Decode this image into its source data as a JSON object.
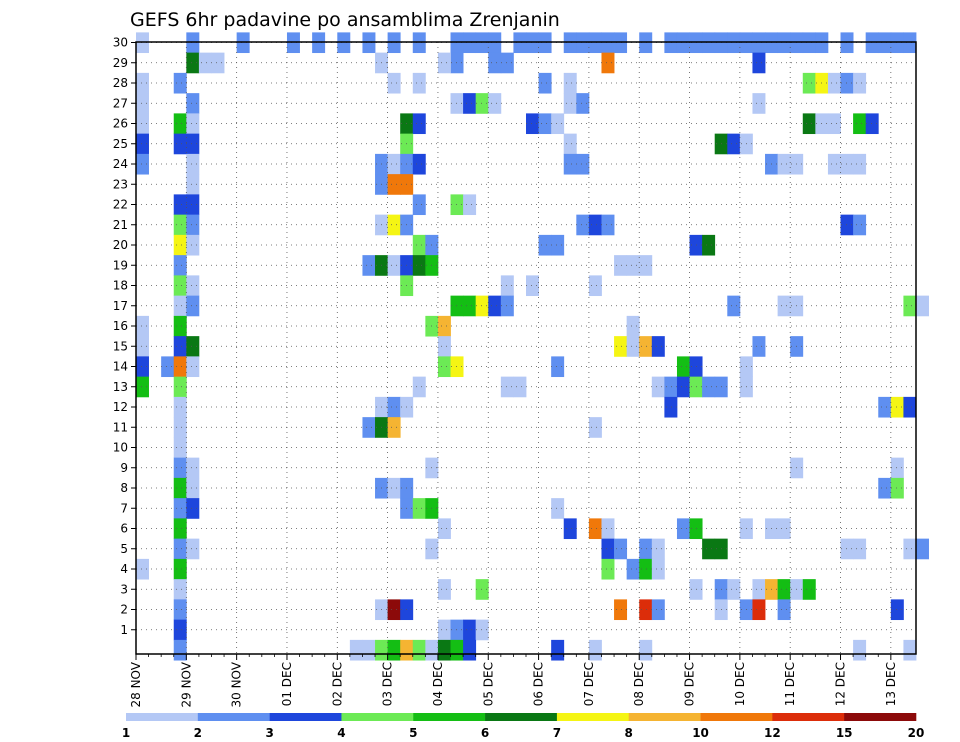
{
  "chart_data": {
    "type": "heatmap",
    "title": "GEFS 6hr padavine po ansamblima Zrenjanin",
    "xlabel": "",
    "ylabel": "",
    "x_tick_labels": [
      "28 NOV",
      "29 NOV",
      "30 NOV",
      "01 DEC",
      "02 DEC",
      "03 DEC",
      "04 DEC",
      "05 DEC",
      "06 DEC",
      "07 DEC",
      "08 DEC",
      "09 DEC",
      "10 DEC",
      "11 DEC",
      "12 DEC",
      "13 DEC"
    ],
    "y_tick_labels": [
      "1",
      "2",
      "3",
      "4",
      "5",
      "6",
      "7",
      "8",
      "9",
      "10",
      "11",
      "12",
      "13",
      "14",
      "15",
      "16",
      "17",
      "18",
      "19",
      "20",
      "21",
      "22",
      "23",
      "24",
      "25",
      "26",
      "27",
      "28",
      "29",
      "30"
    ],
    "x_range_steps": [
      0,
      62
    ],
    "y_range_members": [
      0,
      30
    ],
    "grid": true,
    "colorbar": {
      "labels": [
        "1",
        "2",
        "3",
        "4",
        "5",
        "6",
        "7",
        "8",
        "10",
        "12",
        "15",
        "20"
      ],
      "colors": [
        "#b4c8f5",
        "#5f8ff0",
        "#1e46dc",
        "#6cea55",
        "#14be14",
        "#0a7814",
        "#f5f514",
        "#f5b432",
        "#f0780a",
        "#dc2d0a",
        "#8c0a0a"
      ]
    },
    "cells": [
      [
        0,
        30,
        1
      ],
      [
        4,
        30,
        2
      ],
      [
        8,
        30,
        2
      ],
      [
        12,
        30,
        2
      ],
      [
        14,
        30,
        2
      ],
      [
        16,
        30,
        2
      ],
      [
        18,
        30,
        2
      ],
      [
        20,
        30,
        2
      ],
      [
        22,
        30,
        2
      ],
      [
        25,
        30,
        2
      ],
      [
        25,
        29,
        2
      ],
      [
        26,
        30,
        2
      ],
      [
        27,
        30,
        2
      ],
      [
        28,
        30,
        2
      ],
      [
        28,
        29,
        2
      ],
      [
        29,
        29,
        2
      ],
      [
        30,
        30,
        2
      ],
      [
        31,
        30,
        2
      ],
      [
        32,
        30,
        2
      ],
      [
        34,
        30,
        2
      ],
      [
        35,
        30,
        2
      ],
      [
        36,
        30,
        2
      ],
      [
        37,
        30,
        2
      ],
      [
        38,
        30,
        2
      ],
      [
        40,
        30,
        2
      ],
      [
        42,
        30,
        2
      ],
      [
        43,
        30,
        2
      ],
      [
        44,
        30,
        2
      ],
      [
        45,
        30,
        2
      ],
      [
        46,
        30,
        2
      ],
      [
        47,
        30,
        2
      ],
      [
        48,
        30,
        2
      ],
      [
        49,
        30,
        2
      ],
      [
        50,
        30,
        2
      ],
      [
        51,
        30,
        2
      ],
      [
        52,
        30,
        2
      ],
      [
        53,
        30,
        2
      ],
      [
        54,
        30,
        2
      ],
      [
        56,
        30,
        2
      ],
      [
        58,
        30,
        2
      ],
      [
        59,
        30,
        2
      ],
      [
        60,
        30,
        2
      ],
      [
        61,
        30,
        2
      ],
      [
        4,
        29,
        6
      ],
      [
        5,
        29,
        1
      ],
      [
        6,
        29,
        1
      ],
      [
        19,
        29,
        1
      ],
      [
        24,
        29,
        1
      ],
      [
        37,
        29,
        9
      ],
      [
        49,
        29,
        3
      ],
      [
        0,
        28,
        1
      ],
      [
        3,
        28,
        2
      ],
      [
        20,
        28,
        1
      ],
      [
        22,
        28,
        1
      ],
      [
        32,
        28,
        2
      ],
      [
        34,
        28,
        1
      ],
      [
        53,
        28,
        4
      ],
      [
        54,
        28,
        7
      ],
      [
        55,
        28,
        1
      ],
      [
        56,
        28,
        2
      ],
      [
        57,
        28,
        1
      ],
      [
        0,
        27,
        1
      ],
      [
        4,
        27,
        2
      ],
      [
        25,
        27,
        1
      ],
      [
        26,
        27,
        3
      ],
      [
        27,
        27,
        4
      ],
      [
        28,
        27,
        1
      ],
      [
        34,
        27,
        1
      ],
      [
        35,
        27,
        2
      ],
      [
        49,
        27,
        1
      ],
      [
        0,
        26,
        1
      ],
      [
        3,
        26,
        5
      ],
      [
        4,
        26,
        1
      ],
      [
        21,
        26,
        6
      ],
      [
        22,
        26,
        3
      ],
      [
        31,
        26,
        3
      ],
      [
        32,
        26,
        2
      ],
      [
        33,
        26,
        1
      ],
      [
        53,
        26,
        6
      ],
      [
        54,
        26,
        1
      ],
      [
        55,
        26,
        1
      ],
      [
        57,
        26,
        5
      ],
      [
        58,
        26,
        3
      ],
      [
        0,
        25,
        3
      ],
      [
        3,
        25,
        3
      ],
      [
        4,
        25,
        3
      ],
      [
        21,
        25,
        4
      ],
      [
        34,
        25,
        1
      ],
      [
        46,
        25,
        6
      ],
      [
        47,
        25,
        3
      ],
      [
        48,
        25,
        1
      ],
      [
        0,
        24,
        2
      ],
      [
        4,
        24,
        1
      ],
      [
        19,
        24,
        2
      ],
      [
        20,
        24,
        1
      ],
      [
        21,
        24,
        2
      ],
      [
        22,
        24,
        3
      ],
      [
        34,
        24,
        2
      ],
      [
        35,
        24,
        2
      ],
      [
        50,
        24,
        2
      ],
      [
        51,
        24,
        1
      ],
      [
        52,
        24,
        1
      ],
      [
        55,
        24,
        1
      ],
      [
        56,
        24,
        1
      ],
      [
        57,
        24,
        1
      ],
      [
        4,
        23,
        1
      ],
      [
        19,
        23,
        2
      ],
      [
        20,
        23,
        9
      ],
      [
        21,
        23,
        9
      ],
      [
        3,
        22,
        3
      ],
      [
        4,
        22,
        3
      ],
      [
        22,
        22,
        2
      ],
      [
        25,
        22,
        4
      ],
      [
        26,
        22,
        1
      ],
      [
        3,
        21,
        4
      ],
      [
        4,
        21,
        2
      ],
      [
        19,
        21,
        1
      ],
      [
        20,
        21,
        7
      ],
      [
        21,
        21,
        2
      ],
      [
        35,
        21,
        2
      ],
      [
        36,
        21,
        3
      ],
      [
        37,
        21,
        2
      ],
      [
        56,
        21,
        3
      ],
      [
        57,
        21,
        2
      ],
      [
        3,
        20,
        7
      ],
      [
        4,
        20,
        1
      ],
      [
        22,
        20,
        4
      ],
      [
        23,
        20,
        2
      ],
      [
        32,
        20,
        2
      ],
      [
        33,
        20,
        2
      ],
      [
        44,
        20,
        3
      ],
      [
        45,
        20,
        6
      ],
      [
        3,
        19,
        2
      ],
      [
        18,
        19,
        2
      ],
      [
        19,
        19,
        6
      ],
      [
        20,
        19,
        1
      ],
      [
        21,
        19,
        3
      ],
      [
        22,
        19,
        6
      ],
      [
        23,
        19,
        5
      ],
      [
        38,
        19,
        1
      ],
      [
        39,
        19,
        1
      ],
      [
        40,
        19,
        1
      ],
      [
        3,
        18,
        4
      ],
      [
        4,
        18,
        1
      ],
      [
        21,
        18,
        4
      ],
      [
        29,
        18,
        1
      ],
      [
        31,
        18,
        1
      ],
      [
        36,
        18,
        1
      ],
      [
        3,
        17,
        1
      ],
      [
        4,
        17,
        2
      ],
      [
        25,
        17,
        5
      ],
      [
        26,
        17,
        5
      ],
      [
        27,
        17,
        7
      ],
      [
        28,
        17,
        3
      ],
      [
        29,
        17,
        2
      ],
      [
        47,
        17,
        2
      ],
      [
        51,
        17,
        1
      ],
      [
        52,
        17,
        1
      ],
      [
        61,
        17,
        4
      ],
      [
        62,
        17,
        1
      ],
      [
        0,
        16,
        1
      ],
      [
        3,
        16,
        5
      ],
      [
        23,
        16,
        4
      ],
      [
        24,
        16,
        8
      ],
      [
        39,
        16,
        1
      ],
      [
        0,
        15,
        1
      ],
      [
        3,
        15,
        3
      ],
      [
        4,
        15,
        6
      ],
      [
        24,
        15,
        1
      ],
      [
        38,
        15,
        7
      ],
      [
        39,
        15,
        1
      ],
      [
        40,
        15,
        8
      ],
      [
        41,
        15,
        3
      ],
      [
        49,
        15,
        2
      ],
      [
        52,
        15,
        2
      ],
      [
        0,
        14,
        3
      ],
      [
        2,
        14,
        2
      ],
      [
        3,
        14,
        9
      ],
      [
        4,
        14,
        1
      ],
      [
        24,
        14,
        4
      ],
      [
        25,
        14,
        7
      ],
      [
        33,
        14,
        2
      ],
      [
        43,
        14,
        5
      ],
      [
        44,
        14,
        3
      ],
      [
        48,
        14,
        1
      ],
      [
        0,
        13,
        5
      ],
      [
        3,
        13,
        4
      ],
      [
        22,
        13,
        1
      ],
      [
        29,
        13,
        1
      ],
      [
        30,
        13,
        1
      ],
      [
        41,
        13,
        1
      ],
      [
        42,
        13,
        2
      ],
      [
        43,
        13,
        3
      ],
      [
        44,
        13,
        4
      ],
      [
        45,
        13,
        2
      ],
      [
        46,
        13,
        2
      ],
      [
        48,
        13,
        1
      ],
      [
        3,
        12,
        1
      ],
      [
        19,
        12,
        1
      ],
      [
        20,
        12,
        2
      ],
      [
        21,
        12,
        1
      ],
      [
        42,
        12,
        3
      ],
      [
        59,
        12,
        2
      ],
      [
        60,
        12,
        7
      ],
      [
        61,
        12,
        3
      ],
      [
        3,
        11,
        1
      ],
      [
        18,
        11,
        2
      ],
      [
        19,
        11,
        6
      ],
      [
        20,
        11,
        8
      ],
      [
        36,
        11,
        1
      ],
      [
        3,
        10,
        1
      ],
      [
        3,
        9,
        2
      ],
      [
        4,
        9,
        1
      ],
      [
        23,
        9,
        1
      ],
      [
        52,
        9,
        1
      ],
      [
        60,
        9,
        1
      ],
      [
        3,
        8,
        5
      ],
      [
        4,
        8,
        1
      ],
      [
        19,
        8,
        2
      ],
      [
        20,
        8,
        1
      ],
      [
        21,
        8,
        2
      ],
      [
        59,
        8,
        2
      ],
      [
        60,
        8,
        4
      ],
      [
        3,
        7,
        2
      ],
      [
        4,
        7,
        3
      ],
      [
        21,
        7,
        2
      ],
      [
        22,
        7,
        4
      ],
      [
        23,
        7,
        5
      ],
      [
        33,
        7,
        1
      ],
      [
        3,
        6,
        5
      ],
      [
        24,
        6,
        1
      ],
      [
        34,
        6,
        3
      ],
      [
        36,
        6,
        9
      ],
      [
        37,
        6,
        1
      ],
      [
        43,
        6,
        2
      ],
      [
        44,
        6,
        5
      ],
      [
        48,
        6,
        1
      ],
      [
        50,
        6,
        1
      ],
      [
        51,
        6,
        1
      ],
      [
        3,
        5,
        2
      ],
      [
        4,
        5,
        1
      ],
      [
        23,
        5,
        1
      ],
      [
        37,
        5,
        3
      ],
      [
        38,
        5,
        2
      ],
      [
        40,
        5,
        2
      ],
      [
        41,
        5,
        1
      ],
      [
        45,
        5,
        6
      ],
      [
        46,
        5,
        6
      ],
      [
        56,
        5,
        1
      ],
      [
        57,
        5,
        1
      ],
      [
        61,
        5,
        1
      ],
      [
        62,
        5,
        2
      ],
      [
        0,
        4,
        1
      ],
      [
        3,
        4,
        5
      ],
      [
        37,
        4,
        4
      ],
      [
        39,
        4,
        2
      ],
      [
        40,
        4,
        5
      ],
      [
        41,
        4,
        1
      ],
      [
        3,
        3,
        1
      ],
      [
        24,
        3,
        1
      ],
      [
        27,
        3,
        4
      ],
      [
        44,
        3,
        1
      ],
      [
        46,
        3,
        2
      ],
      [
        47,
        3,
        1
      ],
      [
        49,
        3,
        1
      ],
      [
        50,
        3,
        8
      ],
      [
        51,
        3,
        5
      ],
      [
        52,
        3,
        1
      ],
      [
        53,
        3,
        5
      ],
      [
        3,
        2,
        2
      ],
      [
        19,
        2,
        1
      ],
      [
        20,
        2,
        11
      ],
      [
        21,
        2,
        3
      ],
      [
        38,
        2,
        9
      ],
      [
        40,
        2,
        10
      ],
      [
        41,
        2,
        2
      ],
      [
        46,
        2,
        1
      ],
      [
        48,
        2,
        2
      ],
      [
        49,
        2,
        10
      ],
      [
        51,
        2,
        2
      ],
      [
        60,
        2,
        3
      ],
      [
        3,
        1,
        3
      ],
      [
        24,
        1,
        1
      ],
      [
        25,
        1,
        2
      ],
      [
        26,
        1,
        3
      ],
      [
        27,
        1,
        1
      ],
      [
        3,
        0,
        2
      ],
      [
        17,
        0,
        1
      ],
      [
        18,
        0,
        1
      ],
      [
        19,
        0,
        4
      ],
      [
        20,
        0,
        5
      ],
      [
        21,
        0,
        8
      ],
      [
        22,
        0,
        4
      ],
      [
        23,
        0,
        1
      ],
      [
        24,
        0,
        6
      ],
      [
        25,
        0,
        5
      ],
      [
        26,
        0,
        3
      ],
      [
        33,
        0,
        3
      ],
      [
        36,
        0,
        1
      ],
      [
        40,
        0,
        1
      ],
      [
        57,
        0,
        1
      ],
      [
        61,
        0,
        1
      ]
    ]
  }
}
